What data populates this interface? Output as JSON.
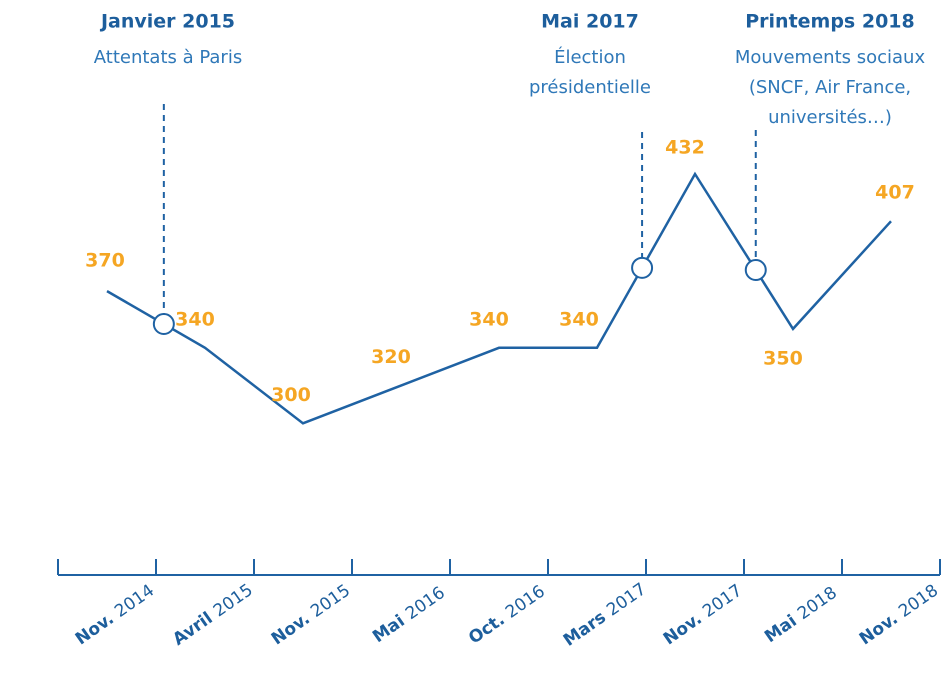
{
  "chart_data": {
    "type": "line",
    "categories": [
      "Nov. 2014",
      "Avril 2015",
      "Nov. 2015",
      "Mai 2016",
      "Oct. 2016",
      "Mars 2017",
      "Nov. 2017",
      "Mai 2018",
      "Nov. 2018"
    ],
    "values": [
      370,
      340,
      300,
      320,
      340,
      340,
      432,
      350,
      407
    ],
    "color": "#1f62a3",
    "label_color": "#f5a623",
    "ylim": [
      270,
      450
    ],
    "annotations": [
      {
        "title": "Janvier 2015",
        "lines": [
          "Attentats à Paris"
        ]
      },
      {
        "title": "Mai 2017",
        "lines": [
          "Élection",
          "présidentielle"
        ]
      },
      {
        "title": "Printemps 2018",
        "lines": [
          "Mouvements sociaux",
          "(SNCF, Air France,",
          "universités…)"
        ]
      }
    ]
  }
}
